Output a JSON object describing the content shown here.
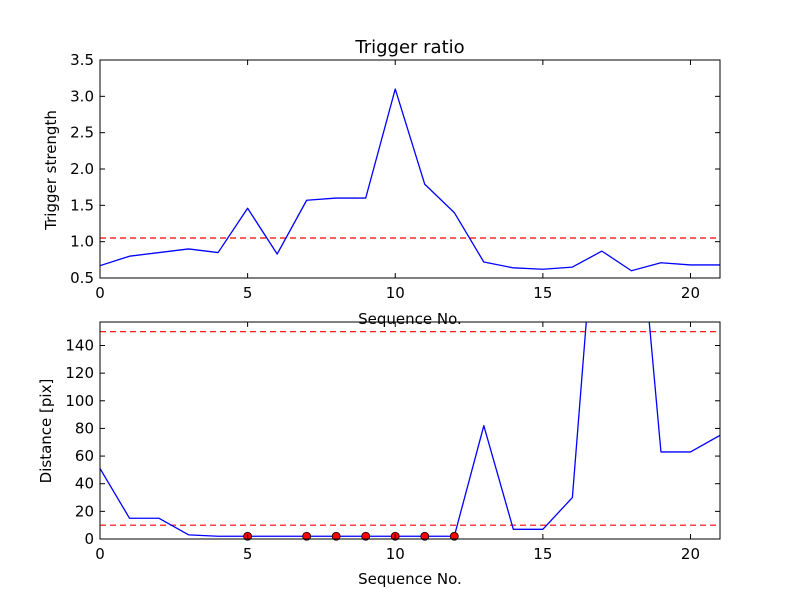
{
  "chart_data": [
    {
      "type": "line",
      "title": "Trigger ratio",
      "xlabel": "Sequence No.",
      "ylabel": "Trigger strength",
      "xlim": [
        0,
        21
      ],
      "ylim": [
        0.5,
        3.5
      ],
      "xticks": [
        0,
        5,
        10,
        15,
        20
      ],
      "xtick_labels": [
        "0",
        "5",
        "10",
        "15",
        "20"
      ],
      "yticks": [
        0.5,
        1.0,
        1.5,
        2.0,
        2.5,
        3.0,
        3.5
      ],
      "ytick_labels": [
        "0.5",
        "1.0",
        "1.5",
        "2.0",
        "2.5",
        "3.0",
        "3.5"
      ],
      "grid": false,
      "series": [
        {
          "color": "#0000ff",
          "x": [
            0,
            1,
            2,
            3,
            4,
            5,
            6,
            7,
            8,
            9,
            10,
            11,
            12,
            13,
            14,
            15,
            16,
            17,
            18,
            19,
            20,
            21
          ],
          "values": [
            0.67,
            0.8,
            0.85,
            0.9,
            0.85,
            1.46,
            0.83,
            1.57,
            1.6,
            1.6,
            3.1,
            1.79,
            1.4,
            0.72,
            0.64,
            0.62,
            0.65,
            0.87,
            0.6,
            0.71,
            0.68,
            0.68
          ]
        }
      ],
      "reference_lines": [
        {
          "y": 1.05,
          "color": "#ff0000",
          "style": "dashed"
        }
      ]
    },
    {
      "type": "line",
      "title": "",
      "xlabel": "Sequence No.",
      "ylabel": "Distance [pix]",
      "xlim": [
        0,
        21
      ],
      "ylim": [
        0,
        157
      ],
      "xticks": [
        0,
        5,
        10,
        15,
        20
      ],
      "xtick_labels": [
        "0",
        "5",
        "10",
        "15",
        "20"
      ],
      "yticks": [
        0,
        20,
        40,
        60,
        80,
        100,
        120,
        140
      ],
      "ytick_labels": [
        "0",
        "20",
        "40",
        "60",
        "80",
        "100",
        "120",
        "140"
      ],
      "grid": false,
      "series": [
        {
          "color": "#0000ff",
          "x": [
            0,
            1,
            2,
            3,
            4,
            5,
            6,
            7,
            8,
            9,
            10,
            11,
            12,
            13,
            14,
            15,
            16,
            17,
            18,
            19,
            20,
            21
          ],
          "values": [
            51,
            15,
            15,
            3,
            2,
            2,
            2,
            2,
            2,
            2,
            2,
            2,
            2,
            82,
            7,
            7,
            30,
            300,
            300,
            63,
            63,
            75
          ]
        }
      ],
      "markers": {
        "color": "#ff0000",
        "x": [
          5,
          7,
          8,
          9,
          10,
          11,
          12
        ],
        "values": [
          2,
          2,
          2,
          2,
          2,
          2,
          2
        ]
      },
      "reference_lines": [
        {
          "y": 150,
          "color": "#ff0000",
          "style": "dashed"
        },
        {
          "y": 10,
          "color": "#ff0000",
          "style": "dashed"
        }
      ]
    }
  ]
}
